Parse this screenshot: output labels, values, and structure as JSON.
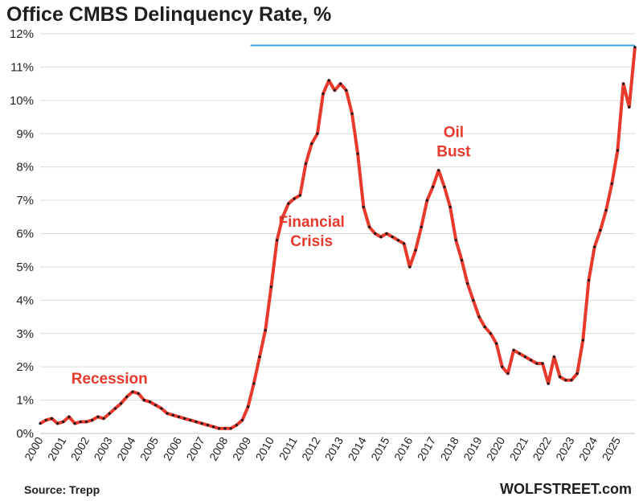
{
  "title": "Office CMBS Delinquency Rate, %",
  "source": "Source: Trepp",
  "credit": "WOLFSTREET.com",
  "colors": {
    "line": "#e8392d",
    "marker": "#1a1a1a",
    "reference_line": "#3ba7e0",
    "annotation": "#e8392d",
    "grid": "#d9d9d9"
  },
  "chart_data": {
    "type": "line",
    "title": "Office CMBS Delinquency Rate, %",
    "xlabel": "",
    "ylabel": "",
    "xlim": [
      2000,
      2025.75
    ],
    "ylim": [
      0,
      12
    ],
    "y_ticks": [
      "0%",
      "1%",
      "2%",
      "3%",
      "4%",
      "5%",
      "6%",
      "7%",
      "8%",
      "9%",
      "10%",
      "11%",
      "12%"
    ],
    "x_ticks": [
      "2000",
      "2001",
      "2002",
      "2003",
      "2004",
      "2005",
      "2006",
      "2007",
      "2008",
      "2009",
      "2010",
      "2011",
      "2012",
      "2013",
      "2014",
      "2015",
      "2016",
      "2017",
      "2018",
      "2019",
      "2020",
      "2021",
      "2022",
      "2023",
      "2024",
      "2025"
    ],
    "grid": "horizontal",
    "reference_line": {
      "y": 11.65,
      "x_from": 2009.1,
      "x_to": 2025.75
    },
    "annotations": [
      {
        "lines": [
          "Recession"
        ],
        "x": 2003.0,
        "y": 1.5
      },
      {
        "lines": [
          "Financial",
          "Crisis"
        ],
        "x": 2011.75,
        "y": 6.2
      },
      {
        "lines": [
          "Oil",
          "Bust"
        ],
        "x": 2017.9,
        "y": 8.9
      }
    ],
    "series": [
      {
        "x": [
          2000.0,
          2000.25,
          2000.5,
          2000.75,
          2001.0,
          2001.25,
          2001.5,
          2001.75,
          2002.0,
          2002.25,
          2002.5,
          2002.75,
          2003.0,
          2003.25,
          2003.5,
          2003.75,
          2004.0,
          2004.25,
          2004.5,
          2004.75,
          2005.0,
          2005.25,
          2005.5,
          2005.75,
          2006.0,
          2006.25,
          2006.5,
          2006.75,
          2007.0,
          2007.25,
          2007.5,
          2007.75,
          2008.0,
          2008.25,
          2008.5,
          2008.75,
          2009.0,
          2009.25,
          2009.5,
          2009.75,
          2010.0,
          2010.25,
          2010.5,
          2010.75,
          2011.0,
          2011.25,
          2011.5,
          2011.75,
          2012.0,
          2012.25,
          2012.5,
          2012.75,
          2013.0,
          2013.25,
          2013.5,
          2013.75,
          2014.0,
          2014.25,
          2014.5,
          2014.75,
          2015.0,
          2015.25,
          2015.5,
          2015.75,
          2016.0,
          2016.25,
          2016.5,
          2016.75,
          2017.0,
          2017.25,
          2017.5,
          2017.75,
          2018.0,
          2018.25,
          2018.5,
          2018.75,
          2019.0,
          2019.25,
          2019.5,
          2019.75,
          2020.0,
          2020.25,
          2020.5,
          2020.75,
          2021.0,
          2021.25,
          2021.5,
          2021.75,
          2022.0,
          2022.25,
          2022.5,
          2022.75,
          2023.0,
          2023.25,
          2023.5,
          2023.75,
          2024.0,
          2024.25,
          2024.5,
          2024.75,
          2025.0,
          2025.25,
          2025.5,
          2025.75
        ],
        "values": [
          0.3,
          0.4,
          0.45,
          0.3,
          0.35,
          0.5,
          0.3,
          0.35,
          0.35,
          0.4,
          0.5,
          0.45,
          0.6,
          0.75,
          0.9,
          1.1,
          1.25,
          1.2,
          1.0,
          0.95,
          0.85,
          0.75,
          0.6,
          0.55,
          0.5,
          0.45,
          0.4,
          0.35,
          0.3,
          0.25,
          0.2,
          0.15,
          0.15,
          0.15,
          0.25,
          0.4,
          0.8,
          1.5,
          2.3,
          3.1,
          4.4,
          5.8,
          6.5,
          6.9,
          7.05,
          7.15,
          8.1,
          8.7,
          9.0,
          10.2,
          10.6,
          10.3,
          10.5,
          10.3,
          9.6,
          8.4,
          6.8,
          6.2,
          6.0,
          5.9,
          6.0,
          5.9,
          5.8,
          5.7,
          5.0,
          5.5,
          6.2,
          7.0,
          7.4,
          7.9,
          7.4,
          6.8,
          5.8,
          5.2,
          4.5,
          4.0,
          3.5,
          3.2,
          3.0,
          2.7,
          2.0,
          1.8,
          2.5,
          2.4,
          2.3,
          2.2,
          2.1,
          2.1,
          1.5,
          2.3,
          1.7,
          1.6,
          1.6,
          1.8,
          2.8,
          4.6,
          5.6,
          6.1,
          6.7,
          7.5,
          8.5,
          10.5,
          9.8,
          11.6
        ]
      }
    ]
  }
}
